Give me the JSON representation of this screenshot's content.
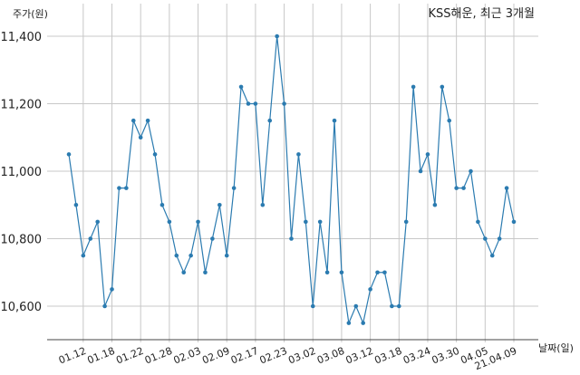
{
  "chart_data": {
    "type": "line",
    "title": "KSS해운, 최근 3개월",
    "ylabel": "주가(원)",
    "xlabel": "날짜(일)",
    "ylim": [
      10500,
      11450
    ],
    "yticks": [
      10600,
      10800,
      11000,
      11200,
      11400
    ],
    "ytick_labels": [
      "10,600",
      "10,800",
      "11,000",
      "11,200",
      "11,400"
    ],
    "grid": true,
    "colors": {
      "line": "#2b7bb0",
      "grid": "#c8c8c8",
      "axis": "#444444"
    },
    "x_tick_labels": [
      {
        "label": "01.12",
        "index": 2
      },
      {
        "label": "01.18",
        "index": 6
      },
      {
        "label": "01.22",
        "index": 10
      },
      {
        "label": "01.28",
        "index": 14
      },
      {
        "label": "02.03",
        "index": 18
      },
      {
        "label": "02.09",
        "index": 22
      },
      {
        "label": "02.17",
        "index": 26
      },
      {
        "label": "02.23",
        "index": 30
      },
      {
        "label": "03.02",
        "index": 34
      },
      {
        "label": "03.08",
        "index": 38
      },
      {
        "label": "03.12",
        "index": 42
      },
      {
        "label": "03.18",
        "index": 46
      },
      {
        "label": "03.24",
        "index": 50
      },
      {
        "label": "03.30",
        "index": 54
      },
      {
        "label": "04.05",
        "index": 58
      },
      {
        "label": "21.04.09",
        "index": 62
      }
    ],
    "series": [
      {
        "values": [
          11050,
          10900,
          10750,
          10800,
          10850,
          10600,
          10650,
          10950,
          10950,
          11150,
          11100,
          11150,
          11050,
          10900,
          10850,
          10750,
          10700,
          10750,
          10850,
          10700,
          10800,
          10900,
          10750,
          10950,
          11250,
          11200,
          11200,
          10900,
          11150,
          11400,
          11200,
          10800,
          11050,
          10850,
          10600,
          10850,
          10700,
          11150,
          10700,
          10550,
          10600,
          10550,
          10650,
          10700,
          10700,
          10600,
          10600,
          10850,
          11250,
          11000,
          11050,
          10900,
          11250,
          11150,
          10950,
          10950,
          11000,
          10850,
          10800,
          10750,
          10800,
          10950,
          10850
        ]
      }
    ]
  }
}
